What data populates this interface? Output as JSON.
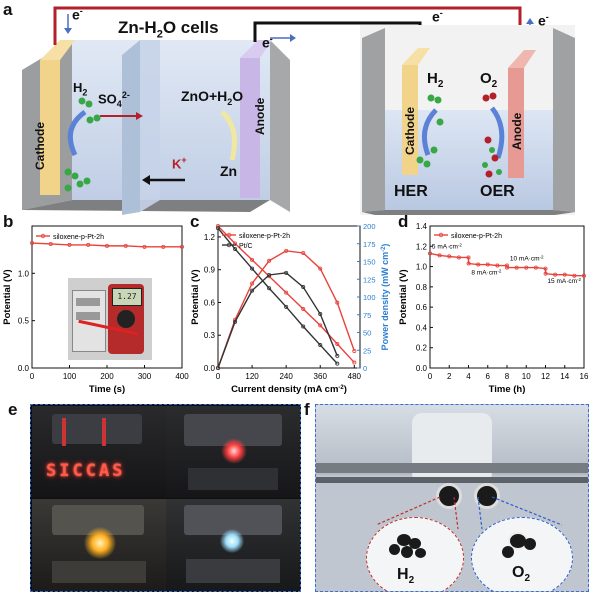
{
  "figure": {
    "panel_letters": {
      "a": "a",
      "b": "b",
      "c": "c",
      "d": "d",
      "e": "e",
      "f": "f"
    }
  },
  "panel_a": {
    "title": "Zn-H",
    "title_sub": "2",
    "title_tail": "O cells",
    "electron": "e",
    "electron_sup": "-",
    "left_cathode": "Cathode",
    "left_anode": "Anode",
    "h2_base": "H",
    "h2_sub": "2",
    "so4_base": "SO",
    "so4_sub": "4",
    "so4_sup": "2-",
    "zno": "ZnO+H",
    "zno_sub": "2",
    "zno_tail": "O",
    "zn": "Zn",
    "k_base": "K",
    "k_sup": "+",
    "right_cathode": "Cathode",
    "right_anode": "Anode",
    "o2_base": "O",
    "o2_sub": "2",
    "her": "HER",
    "oer": "OER"
  },
  "panel_e": {
    "sign_text": "SICCAS"
  },
  "panel_f": {
    "h2_base": "H",
    "h2_sub": "2",
    "o2_base": "O",
    "o2_sub": "2"
  },
  "chart_data": [
    {
      "panel": "b",
      "type": "line",
      "xlabel": "Time (s)",
      "ylabel": "Potential (V)",
      "xlim": [
        0,
        400
      ],
      "ylim": [
        0.0,
        1.5
      ],
      "xticks": [
        "0",
        "100",
        "200",
        "300",
        "400"
      ],
      "yticks": [
        "0.0",
        "0.5",
        "1.0"
      ],
      "series": [
        {
          "name": "siloxene-p-Pt-2h",
          "color": "#e8423c",
          "x": [
            0,
            50,
            100,
            150,
            200,
            250,
            300,
            350,
            400
          ],
          "y": [
            1.32,
            1.31,
            1.3,
            1.3,
            1.29,
            1.29,
            1.28,
            1.28,
            1.28
          ]
        }
      ],
      "legend": "top-left"
    },
    {
      "panel": "c",
      "type": "line",
      "xlabel": "Current density (mA cm",
      "xlabel_sup": "-2",
      "xlabel_tail": ")",
      "ylabel": "Potential (V)",
      "y2label": "Power density (mW cm",
      "y2label_sup": "-2",
      "y2label_tail": ")",
      "xlim": [
        0,
        500
      ],
      "ylim": [
        0.0,
        1.3
      ],
      "y2lim": [
        0,
        200
      ],
      "xticks": [
        "0",
        "120",
        "240",
        "360",
        "480"
      ],
      "yticks": [
        "0.0",
        "0.3",
        "0.6",
        "0.9",
        "1.2"
      ],
      "y2ticks": [
        "0",
        "25",
        "50",
        "75",
        "100",
        "125",
        "150",
        "175",
        "200"
      ],
      "series": [
        {
          "name": "siloxene-p-Pt-2h",
          "color": "#e8423c",
          "kind": "polarization",
          "x": [
            0,
            60,
            120,
            180,
            240,
            300,
            360,
            420,
            480
          ],
          "y": [
            1.3,
            1.14,
            0.99,
            0.84,
            0.69,
            0.54,
            0.39,
            0.22,
            0.05
          ]
        },
        {
          "name": "Pt/C",
          "color": "#333333",
          "kind": "polarization",
          "x": [
            0,
            60,
            120,
            180,
            240,
            300,
            360,
            420
          ],
          "y": [
            1.28,
            1.09,
            0.91,
            0.73,
            0.56,
            0.38,
            0.21,
            0.04
          ]
        },
        {
          "name": "",
          "color": "#e8423c",
          "kind": "power",
          "x": [
            0,
            60,
            120,
            180,
            240,
            300,
            360,
            420,
            480
          ],
          "y": [
            0,
            68,
            119,
            151,
            165,
            162,
            140,
            92,
            24
          ]
        },
        {
          "name": "",
          "color": "#333333",
          "kind": "power",
          "x": [
            0,
            60,
            120,
            180,
            240,
            300,
            360,
            420
          ],
          "y": [
            0,
            65,
            109,
            131,
            134,
            114,
            76,
            17
          ]
        }
      ],
      "legend": "top-left"
    },
    {
      "panel": "d",
      "type": "line",
      "xlabel": "Time (h)",
      "ylabel": "Potential (V)",
      "xlim": [
        0,
        16
      ],
      "ylim": [
        0.0,
        1.4
      ],
      "xticks": [
        "0",
        "2",
        "4",
        "6",
        "8",
        "10",
        "12",
        "14",
        "16"
      ],
      "yticks": [
        "0.0",
        "0.2",
        "0.4",
        "0.6",
        "0.8",
        "1.0",
        "1.2",
        "1.4"
      ],
      "series": [
        {
          "name": "siloxene-p-Pt-2h",
          "color": "#e8423c",
          "x": [
            0,
            1,
            2,
            3,
            4,
            4.01,
            5,
            6,
            7,
            8,
            8.01,
            9,
            10,
            11,
            12,
            12.01,
            13,
            14,
            15,
            16
          ],
          "y": [
            1.13,
            1.11,
            1.1,
            1.09,
            1.09,
            1.03,
            1.02,
            1.02,
            1.01,
            1.01,
            0.99,
            0.99,
            0.99,
            0.99,
            0.98,
            0.93,
            0.92,
            0.92,
            0.91,
            0.91
          ]
        }
      ],
      "annotations": [
        {
          "text": "5 mA·cm",
          "sup": "-2",
          "x": 0.2,
          "y": 1.18
        },
        {
          "text": "8 mA·cm",
          "sup": "-2",
          "x": 4.3,
          "y": 0.92
        },
        {
          "text": "10 mA·cm",
          "sup": "-2",
          "x": 8.3,
          "y": 1.06
        },
        {
          "text": "15 mA·cm",
          "sup": "-2",
          "x": 12.2,
          "y": 0.84
        }
      ],
      "legend": "top-left"
    }
  ]
}
